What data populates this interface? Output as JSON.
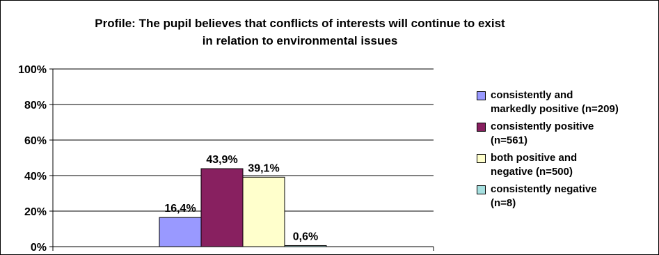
{
  "chart_data": {
    "type": "bar",
    "title": [
      "Profile: The pupil believes that conflicts of interests will continue to exist",
      "in relation to environmental issues"
    ],
    "categories": [
      ""
    ],
    "series": [
      {
        "name": "consistently and markedly positive (n=209)",
        "values": [
          16.4
        ],
        "label": "16,4%",
        "color": "#9999FF"
      },
      {
        "name": "consistently positive (n=561)",
        "values": [
          43.9
        ],
        "label": "43,9%",
        "color": "#882060"
      },
      {
        "name": "both positive and negative (n=500)",
        "values": [
          39.1
        ],
        "label": "39,1%",
        "color": "#FFFFCC"
      },
      {
        "name": "consistently negative (n=8)",
        "values": [
          0.6
        ],
        "label": "0,6%",
        "color": "#A6E0E0"
      }
    ],
    "ylim": [
      0,
      100
    ],
    "yticks": [
      0,
      20,
      40,
      60,
      80,
      100
    ],
    "ytick_labels": [
      "0%",
      "20%",
      "40%",
      "60%",
      "80%",
      "100%"
    ],
    "grid": true,
    "legend": {
      "position": "right",
      "items": [
        {
          "lines": [
            "consistently and",
            "markedly positive (n=209)"
          ],
          "color": "#9999FF"
        },
        {
          "lines": [
            "consistently positive",
            "(n=561)"
          ],
          "color": "#882060"
        },
        {
          "lines": [
            "both positive and",
            "negative (n=500)"
          ],
          "color": "#FFFFCC"
        },
        {
          "lines": [
            "consistently negative",
            "(n=8)"
          ],
          "color": "#A6E0E0"
        }
      ]
    }
  }
}
